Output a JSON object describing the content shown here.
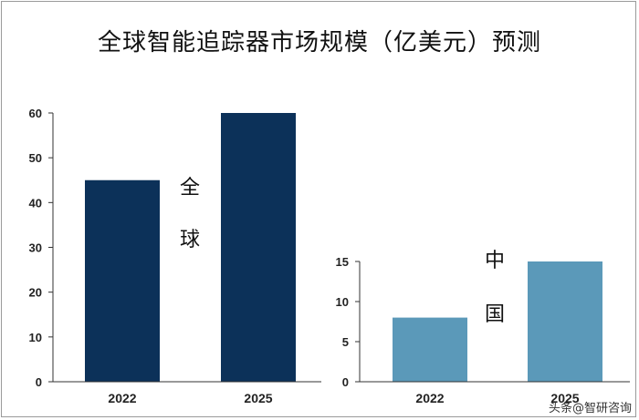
{
  "title": "全球智能追踪器市场规模（亿美元）预测",
  "watermark": "头条@智研咨询",
  "colors": {
    "global_bar": "#0c3159",
    "china_bar": "#5b99b9",
    "axis": "#333333"
  },
  "chart_data": [
    {
      "type": "bar",
      "region_label": [
        "全",
        "球"
      ],
      "categories": [
        "2022",
        "2025"
      ],
      "values": [
        45,
        60
      ],
      "ylim": [
        0,
        60
      ],
      "yticks": [
        0,
        10,
        20,
        30,
        40,
        50,
        60
      ]
    },
    {
      "type": "bar",
      "region_label": [
        "中",
        "国"
      ],
      "categories": [
        "2022",
        "2025"
      ],
      "values": [
        8,
        15
      ],
      "ylim": [
        0,
        15
      ],
      "yticks": [
        0,
        5,
        10,
        15
      ]
    }
  ]
}
